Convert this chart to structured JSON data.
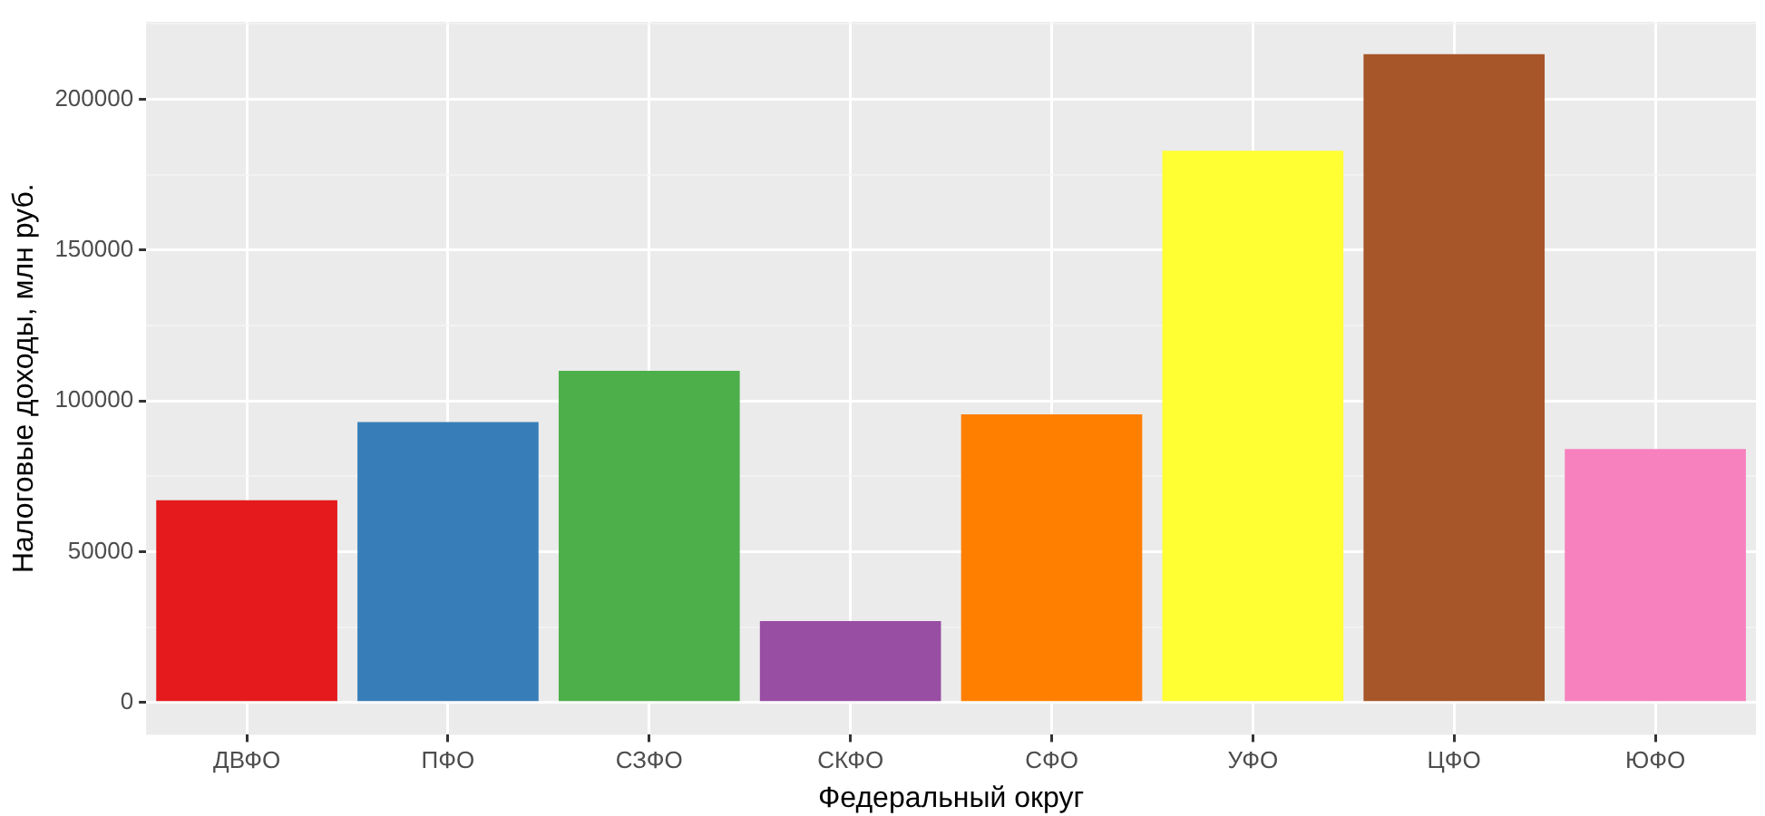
{
  "chart_data": {
    "type": "bar",
    "xlabel": "Федеральный округ",
    "ylabel": "Налоговые доходы, млн руб.",
    "categories": [
      "ДВФО",
      "ПФО",
      "СЗФО",
      "СКФО",
      "СФО",
      "УФО",
      "ЦФО",
      "ЮФО"
    ],
    "values": [
      67000,
      93000,
      110000,
      27000,
      95500,
      183000,
      215000,
      84000
    ],
    "colors": [
      "#e41a1c",
      "#377eb8",
      "#4daf4a",
      "#984ea3",
      "#ff7f00",
      "#ffff33",
      "#a65628",
      "#f781bf"
    ],
    "ylim": [
      -10750,
      225750
    ],
    "yticks": [
      0,
      {
        "value": 25000,
        "label": null
      },
      50000,
      {
        "value": 75000,
        "label": null
      },
      100000,
      {
        "value": 125000,
        "label": null
      },
      150000,
      {
        "value": 175000,
        "label": null
      },
      200000,
      {
        "value": 225000,
        "label": null
      }
    ],
    "grid": true
  }
}
